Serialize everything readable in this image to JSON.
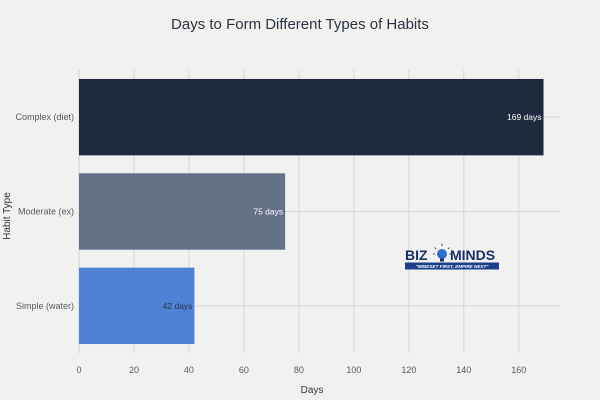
{
  "chart_data": {
    "type": "bar",
    "orientation": "horizontal",
    "title": "Days to Form Different Types of Habits",
    "xlabel": "Days",
    "ylabel": "Habit Type",
    "categories": [
      "Complex (diet)",
      "Moderate (ex)",
      "Simple (water)"
    ],
    "values": [
      169,
      75,
      42
    ],
    "data_labels": [
      "169 days",
      "75 days",
      "42 days"
    ],
    "colors": [
      "#1f2a3e",
      "#657089",
      "#4f82d7"
    ],
    "data_label_colors": [
      "#ffffff",
      "#ffffff",
      "#2b3240"
    ],
    "xlim": [
      0,
      175
    ],
    "xticks": [
      0,
      20,
      40,
      60,
      80,
      100,
      120,
      140,
      160
    ],
    "grid": true,
    "legend": "none"
  },
  "watermark": {
    "text_left": "BIZ",
    "text_right": "MINDS",
    "tagline": "\"MINDSET FIRST, EMPIRE NEXT\""
  }
}
